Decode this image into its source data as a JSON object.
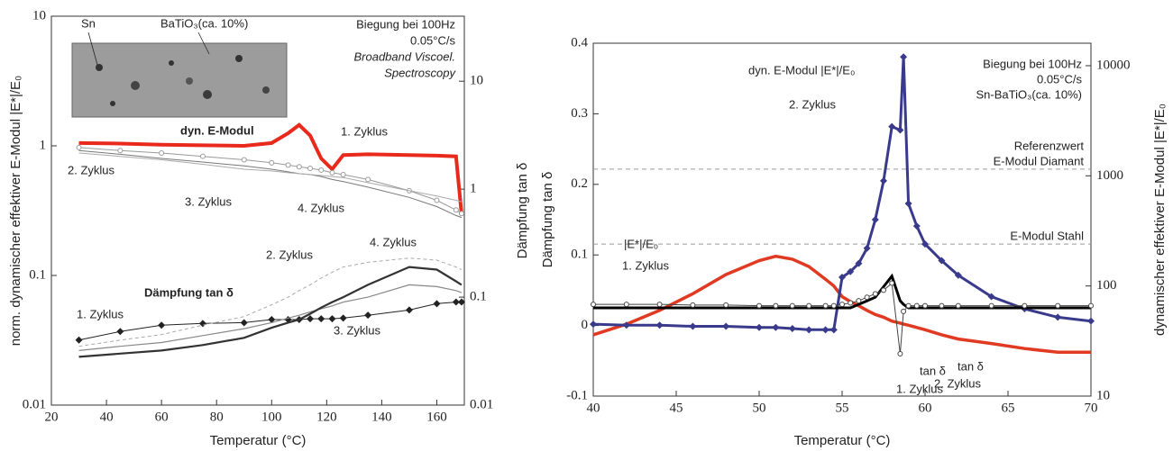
{
  "chart_data": [
    {
      "type": "line",
      "xlabel": "Temperatur (°C)",
      "ylabel": "norm. dynamischer effektiver E-Modul |E*|/E₀",
      "y2label": "Dämpfung tan δ",
      "xlim": [
        20,
        170
      ],
      "xticks": [
        20,
        40,
        60,
        80,
        100,
        120,
        140,
        160
      ],
      "ylog": true,
      "ylim": [
        0.01,
        10
      ],
      "yticks": [
        0.01,
        0.1,
        1,
        10
      ],
      "y2log": true,
      "y2lim": [
        0.01,
        40
      ],
      "y2ticks": [
        0.01,
        0.1,
        1,
        10
      ],
      "annotations": [
        "Sn",
        "BaTiO₃(ca. 10%)",
        "Biegung bei 100Hz",
        "0.05°C/s",
        "Broadband Viscoel.",
        "Spectroscopy",
        "dyn. E-Modul",
        "Dämpfung tan δ"
      ],
      "x": [
        30,
        45,
        60,
        75,
        90,
        100,
        106,
        110,
        114,
        118,
        122,
        126,
        135,
        150,
        160,
        167,
        169
      ],
      "series": [
        {
          "name": "1. Zyklus",
          "color": "#e8291c",
          "width": 4,
          "values": [
            1.05,
            1.04,
            1.02,
            1.01,
            1.0,
            1.05,
            1.25,
            1.45,
            1.2,
            0.8,
            0.66,
            0.85,
            0.86,
            0.85,
            0.84,
            0.83,
            0.3
          ]
        },
        {
          "name": "2. Zyklus",
          "color": "#999999",
          "width": 1,
          "marker": "circle",
          "values": [
            0.97,
            0.92,
            0.88,
            0.83,
            0.78,
            0.74,
            0.71,
            0.69,
            0.67,
            0.65,
            0.62,
            0.6,
            0.55,
            0.45,
            0.38,
            0.32,
            0.3
          ]
        },
        {
          "name": "3. Zyklus",
          "color": "#777777",
          "width": 1,
          "values": [
            0.92,
            0.86,
            0.8,
            0.75,
            0.7,
            0.66,
            0.63,
            0.61,
            0.6,
            0.58,
            0.55,
            0.53,
            0.48,
            0.4,
            0.34,
            0.29,
            0.28
          ]
        },
        {
          "name": "4. Zyklus",
          "color": "#aaaaaa",
          "width": 1,
          "values": [
            0.88,
            0.83,
            0.78,
            0.72,
            0.66,
            0.64,
            0.62,
            0.61,
            0.6,
            0.59,
            0.58,
            0.57,
            0.52,
            0.45,
            0.41,
            0.38,
            0.37
          ]
        },
        {
          "name": "1. Zyklus",
          "color": "#222222",
          "width": 1,
          "marker": "diamond",
          "axis": "y2",
          "values": [
            0.04,
            0.048,
            0.055,
            0.057,
            0.058,
            0.062,
            0.062,
            0.062,
            0.063,
            0.063,
            0.063,
            0.064,
            0.068,
            0.076,
            0.087,
            0.09,
            0.09
          ]
        },
        {
          "name": "2. Zyklus",
          "color": "#aaaaaa",
          "width": 1,
          "dash": "4 3",
          "axis": "y2",
          "values": [
            0.035,
            0.04,
            0.045,
            0.055,
            0.066,
            0.085,
            0.1,
            0.115,
            0.13,
            0.15,
            0.17,
            0.19,
            0.21,
            0.23,
            0.22,
            0.19,
            0.18
          ]
        },
        {
          "name": "3. Zyklus",
          "color": "#888888",
          "width": 1.2,
          "axis": "y2",
          "values": [
            0.032,
            0.035,
            0.038,
            0.044,
            0.051,
            0.058,
            0.064,
            0.068,
            0.073,
            0.078,
            0.083,
            0.09,
            0.1,
            0.13,
            0.125,
            0.115,
            0.11
          ]
        },
        {
          "name": "4. Zyklus",
          "color": "#333333",
          "width": 2.2,
          "axis": "y2",
          "values": [
            0.028,
            0.03,
            0.032,
            0.036,
            0.042,
            0.052,
            0.058,
            0.062,
            0.07,
            0.08,
            0.09,
            0.1,
            0.13,
            0.19,
            0.18,
            0.14,
            0.13
          ]
        }
      ]
    },
    {
      "type": "line",
      "xlabel": "Temperatur (°C)",
      "ylabel": "Dämpfung tan δ",
      "y2label": "dynamischer effektiver E-Modul |E*|/E₀",
      "xlim": [
        40,
        70
      ],
      "xticks": [
        40,
        45,
        50,
        55,
        60,
        65,
        70
      ],
      "ylim": [
        -0.1,
        0.4
      ],
      "yticks": [
        -0.1,
        0,
        0.1,
        0.2,
        0.3,
        0.4
      ],
      "y2log": true,
      "y2lim": [
        10,
        16000
      ],
      "y2ticks": [
        10,
        100,
        1000,
        10000
      ],
      "annotations": [
        "Biegung bei 100Hz",
        "0.05°C/s",
        "Sn-BaTiO₃(ca. 10%)",
        "2. Zyklus",
        "1. Zyklus",
        "1. Zyklus",
        "2. Zyklus"
      ],
      "reference_lines": [
        {
          "value": 1150,
          "labels": [
            "Referenzwert",
            "E-Modul Diamant"
          ]
        },
        {
          "value": 240,
          "labels": [
            "E-Modul Stahl"
          ]
        }
      ],
      "x": [
        40,
        42,
        44,
        46,
        48,
        50,
        51,
        52,
        53,
        54,
        54.5,
        55,
        55.5,
        56,
        56.5,
        57,
        57.5,
        58,
        58.5,
        58.7,
        59,
        59.5,
        60,
        61,
        62,
        64,
        66,
        68,
        70
      ],
      "series": [
        {
          "name": "|E*|/E₀",
          "color": "#e03a22",
          "width": 3.5,
          "axis": "y2",
          "values": [
            36,
            45,
            60,
            85,
            127,
            170,
            186,
            175,
            150,
            115,
            100,
            80,
            72,
            66,
            60,
            55,
            52,
            48,
            46,
            45,
            44,
            42,
            40,
            36,
            33,
            30,
            27,
            25,
            25
          ]
        },
        {
          "name": "dyn. E-Modul |E*|/E₀",
          "color": "#3a3a8c",
          "width": 3,
          "marker": "diamond",
          "axis": "y2",
          "values": [
            45,
            44,
            44,
            43,
            43,
            42,
            42,
            41,
            40,
            40,
            40,
            120,
            135,
            160,
            220,
            400,
            900,
            2800,
            2600,
            12000,
            560,
            350,
            240,
            170,
            125,
            80,
            62,
            52,
            48
          ]
        },
        {
          "name": "tan δ",
          "color": "#000000",
          "width": 3,
          "values": [
            0.025,
            0.025,
            0.025,
            0.025,
            0.025,
            0.025,
            0.025,
            0.025,
            0.025,
            0.025,
            0.025,
            0.025,
            0.025,
            0.03,
            0.035,
            0.04,
            0.055,
            0.07,
            0.035,
            0.03,
            0.025,
            0.025,
            0.025,
            0.025,
            0.025,
            0.025,
            0.025,
            0.025,
            0.025
          ]
        },
        {
          "name": "tan δ",
          "color": "#444444",
          "width": 1,
          "marker": "circle",
          "values": [
            0.03,
            0.03,
            0.03,
            0.029,
            0.029,
            0.028,
            0.028,
            0.028,
            0.028,
            0.028,
            0.028,
            0.03,
            0.032,
            0.035,
            0.04,
            0.045,
            0.05,
            0.06,
            -0.04,
            0.02,
            0.028,
            0.028,
            0.028,
            0.028,
            0.028,
            0.028,
            0.028,
            0.028,
            0.028
          ]
        }
      ]
    }
  ]
}
